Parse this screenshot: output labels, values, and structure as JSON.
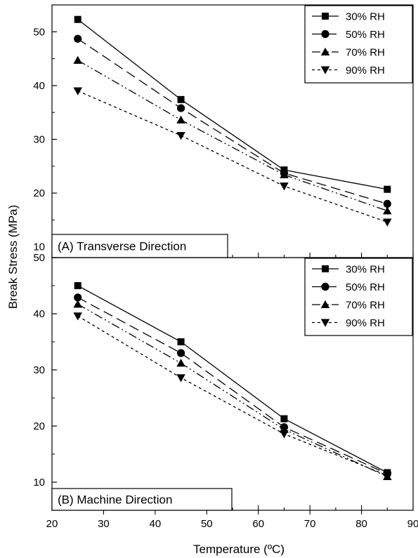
{
  "figure": {
    "ylabel": "Break Stress (MPa)",
    "xlabel": "Temperature (ºC)"
  },
  "chart_data": [
    {
      "type": "line",
      "panel_label": "(A) Transverse Direction",
      "x": [
        25,
        45,
        65,
        85
      ],
      "xlim": [
        20,
        90
      ],
      "ylim": [
        8,
        55
      ],
      "yticks": [
        10,
        20,
        30,
        40,
        50
      ],
      "legend_position": "top-right",
      "series": [
        {
          "name": "30% RH",
          "marker": "square",
          "dash": "solid",
          "values": [
            52.3,
            37.4,
            24.3,
            20.7
          ]
        },
        {
          "name": "50% RH",
          "marker": "circle",
          "dash": "dash",
          "values": [
            48.7,
            35.8,
            23.7,
            18.0
          ]
        },
        {
          "name": "70% RH",
          "marker": "triangle-up",
          "dash": "dash-dot-dot",
          "values": [
            44.7,
            33.6,
            23.4,
            16.7
          ]
        },
        {
          "name": "90% RH",
          "marker": "triangle-down",
          "dash": "short-dash",
          "values": [
            39.0,
            30.7,
            21.3,
            14.6
          ]
        }
      ]
    },
    {
      "type": "line",
      "panel_label": "(B) Machine Direction",
      "x": [
        25,
        45,
        65,
        85
      ],
      "xlim": [
        20,
        90
      ],
      "xticks": [
        20,
        30,
        40,
        50,
        60,
        70,
        80,
        90
      ],
      "ylim": [
        5,
        50
      ],
      "yticks": [
        10,
        20,
        30,
        40,
        50
      ],
      "legend_position": "top-right",
      "series": [
        {
          "name": "30% RH",
          "marker": "square",
          "dash": "solid",
          "values": [
            45.0,
            35.0,
            21.3,
            11.7
          ]
        },
        {
          "name": "50% RH",
          "marker": "circle",
          "dash": "dash",
          "values": [
            42.9,
            33.0,
            19.8,
            11.5
          ]
        },
        {
          "name": "70% RH",
          "marker": "triangle-up",
          "dash": "dash-dot-dot",
          "values": [
            41.7,
            31.2,
            19.4,
            11.0
          ]
        },
        {
          "name": "90% RH",
          "marker": "triangle-down",
          "dash": "short-dash",
          "values": [
            39.6,
            28.6,
            18.6,
            11.2
          ]
        }
      ]
    }
  ]
}
